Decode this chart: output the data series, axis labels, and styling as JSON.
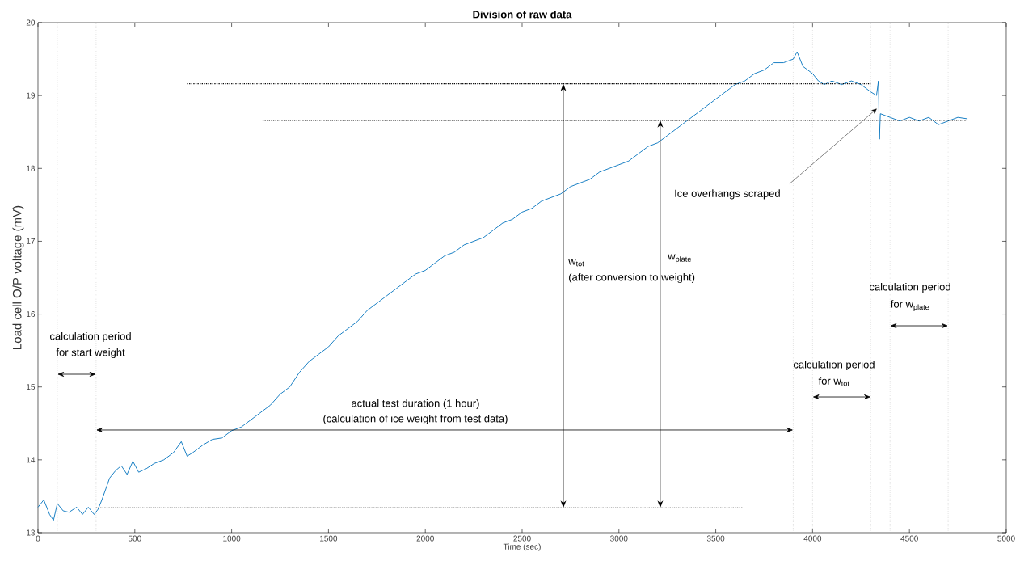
{
  "chart_data": {
    "type": "line",
    "title": "Division of raw data",
    "xlabel": "Time (sec)",
    "ylabel": "Load cell O/P voltage (mV)",
    "xlim": [
      0,
      5000
    ],
    "ylim": [
      13,
      20
    ],
    "xticks": [
      0,
      500,
      1000,
      1500,
      2000,
      2500,
      3000,
      3500,
      4000,
      4500,
      5000
    ],
    "yticks": [
      13,
      14,
      15,
      16,
      17,
      18,
      19,
      20
    ],
    "series": [
      {
        "color": "#0072bd",
        "line_style": "solid",
        "x": [
          0,
          30,
          60,
          80,
          100,
          130,
          160,
          200,
          230,
          260,
          290,
          310,
          330,
          350,
          370,
          400,
          430,
          460,
          490,
          520,
          560,
          600,
          650,
          700,
          740,
          770,
          800,
          850,
          900,
          950,
          1000,
          1050,
          1100,
          1150,
          1200,
          1250,
          1300,
          1350,
          1400,
          1450,
          1500,
          1550,
          1600,
          1650,
          1700,
          1750,
          1800,
          1850,
          1900,
          1950,
          2000,
          2050,
          2100,
          2150,
          2200,
          2250,
          2300,
          2350,
          2400,
          2450,
          2500,
          2550,
          2600,
          2650,
          2700,
          2750,
          2800,
          2850,
          2900,
          2950,
          3000,
          3050,
          3100,
          3150,
          3200,
          3250,
          3300,
          3350,
          3400,
          3450,
          3500,
          3550,
          3600,
          3650,
          3700,
          3750,
          3800,
          3850,
          3900,
          3920,
          3950,
          4000,
          4030,
          4060,
          4100,
          4150,
          4200,
          4250,
          4300,
          4330,
          4340,
          4345,
          4350,
          4400,
          4450,
          4500,
          4550,
          4600,
          4650,
          4700,
          4750,
          4800
        ],
        "values": [
          13.35,
          13.45,
          13.25,
          13.17,
          13.4,
          13.3,
          13.28,
          13.35,
          13.25,
          13.35,
          13.25,
          13.32,
          13.45,
          13.6,
          13.75,
          13.85,
          13.92,
          13.8,
          13.98,
          13.83,
          13.88,
          13.95,
          14.0,
          14.1,
          14.25,
          14.05,
          14.1,
          14.2,
          14.28,
          14.3,
          14.4,
          14.45,
          14.55,
          14.65,
          14.75,
          14.9,
          15.0,
          15.2,
          15.35,
          15.45,
          15.55,
          15.7,
          15.8,
          15.9,
          16.05,
          16.15,
          16.25,
          16.35,
          16.45,
          16.55,
          16.6,
          16.7,
          16.8,
          16.85,
          16.95,
          17.0,
          17.05,
          17.15,
          17.25,
          17.3,
          17.4,
          17.45,
          17.55,
          17.6,
          17.65,
          17.75,
          17.8,
          17.85,
          17.95,
          18.0,
          18.05,
          18.1,
          18.2,
          18.3,
          18.35,
          18.45,
          18.55,
          18.65,
          18.75,
          18.85,
          18.95,
          19.05,
          19.15,
          19.2,
          19.3,
          19.35,
          19.45,
          19.45,
          19.5,
          19.6,
          19.4,
          19.3,
          19.2,
          19.15,
          19.2,
          19.15,
          19.2,
          19.15,
          19.05,
          19.0,
          19.2,
          18.4,
          18.75,
          18.7,
          18.65,
          18.7,
          18.65,
          18.7,
          18.6,
          18.65,
          18.7,
          18.68
        ]
      },
      {
        "color": "#000000",
        "line_style": "dotted",
        "x": [
          770,
          4300
        ],
        "values": [
          19.16,
          19.16
        ]
      },
      {
        "color": "#000000",
        "line_style": "dotted",
        "x": [
          1160,
          4800
        ],
        "values": [
          18.66,
          18.66
        ]
      },
      {
        "color": "#000000",
        "line_style": "dotted",
        "x": [
          300,
          3640
        ],
        "values": [
          13.34,
          13.34
        ]
      }
    ],
    "ref_lines": [
      {
        "axis": "x",
        "value": 100,
        "color": "#b0b0b0",
        "line_style": "dotted"
      },
      {
        "axis": "x",
        "value": 300,
        "color": "#b0b0b0",
        "line_style": "dotted"
      },
      {
        "axis": "x",
        "value": 3900,
        "color": "#b0b0b0",
        "line_style": "dotted"
      },
      {
        "axis": "x",
        "value": 4000,
        "color": "#b0b0b0",
        "line_style": "dotted"
      },
      {
        "axis": "x",
        "value": 4300,
        "color": "#b0b0b0",
        "line_style": "dotted"
      },
      {
        "axis": "x",
        "value": 4400,
        "color": "#b0b0b0",
        "line_style": "dotted"
      },
      {
        "axis": "x",
        "value": 4700,
        "color": "#b0b0b0",
        "line_style": "dotted"
      }
    ],
    "annotations": [
      "calculation period",
      "for start weight",
      "actual test duration (1 hour)",
      "(calculation of ice weight from test data)",
      "w$_{tot}$",
      "(after conversion to weight)",
      "w$_{plate}$",
      {
        "text": "Ice overhangs scraped",
        "x": 4332,
        "y": 18.82
      },
      "calculation period",
      "for w$_{tot}$",
      "calculation period",
      "for w$_{plate}$"
    ]
  }
}
